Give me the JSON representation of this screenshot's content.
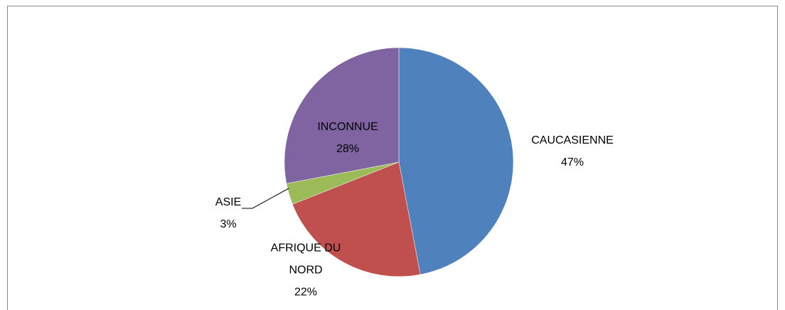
{
  "chart_data": {
    "type": "pie",
    "categories": [
      "CAUCASIENNE",
      "AFRIQUE DU NORD",
      "ASIE",
      "INCONNUE"
    ],
    "values": [
      47,
      22,
      3,
      28
    ],
    "value_labels": [
      "47%",
      "22%",
      "3%",
      "28%"
    ],
    "colors": [
      "#4f81bd",
      "#c0504d",
      "#9bbb59",
      "#8064a2"
    ]
  }
}
